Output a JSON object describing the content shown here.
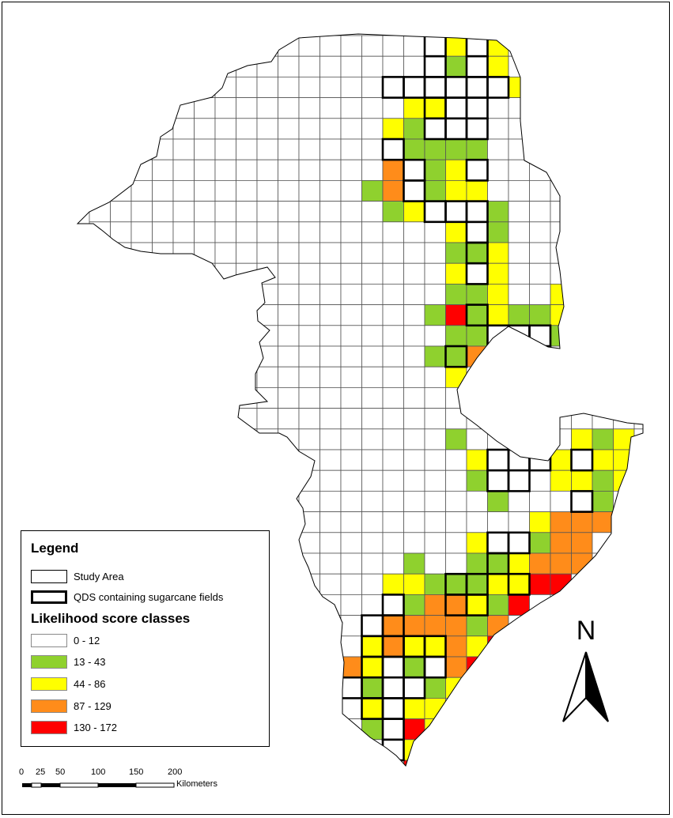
{
  "legend": {
    "title": "Legend",
    "study_area": "Study Area",
    "qds_label": "QDS containing sugarcane fields",
    "classes_title": "Likelihood score classes",
    "classes": [
      {
        "label": "0 - 12",
        "color": "#ffffff"
      },
      {
        "label": "13 - 43",
        "color": "#8fd12e"
      },
      {
        "label": "44 - 86",
        "color": "#ffff00"
      },
      {
        "label": "87 - 129",
        "color": "#ff8c1a"
      },
      {
        "label": "130 - 172",
        "color": "#ff0000"
      }
    ]
  },
  "north_label": "N",
  "scale": {
    "ticks": [
      "0",
      "25",
      "50",
      "100",
      "150",
      "200"
    ],
    "unit": "Kilometers"
  },
  "colors": {
    "w": "#ffffff",
    "g": "#8fd12e",
    "y": "#ffff00",
    "o": "#ff8c1a",
    "r": "#ff0000",
    "grid": "#555555",
    "outline": "#000000"
  }
}
